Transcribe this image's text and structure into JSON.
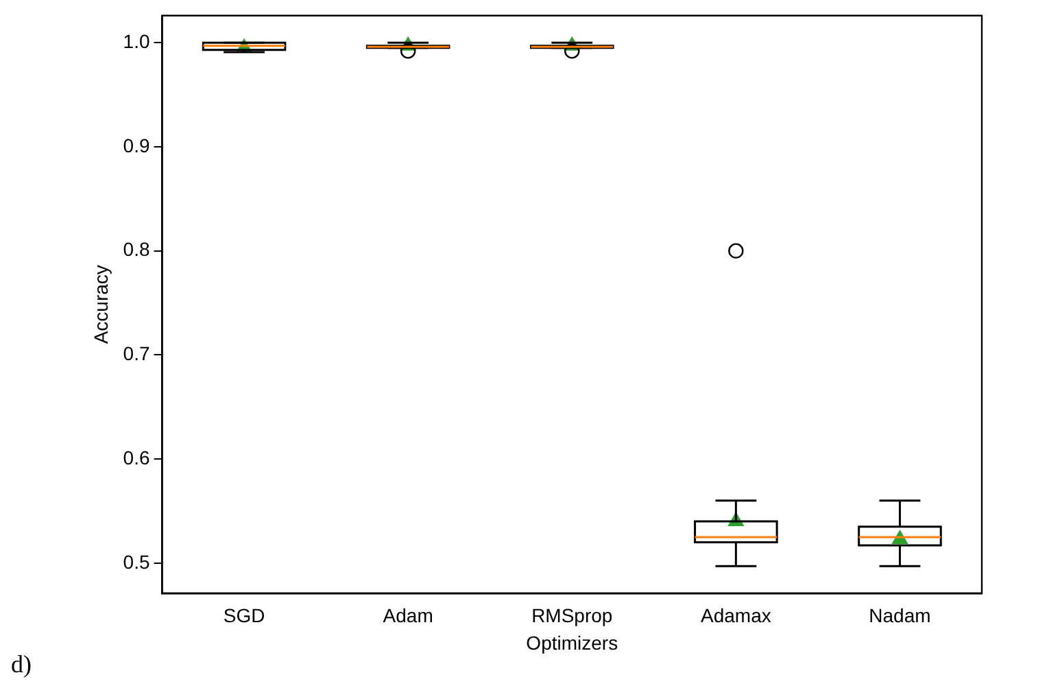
{
  "chart_data": {
    "type": "box",
    "xlabel": "Optimizers",
    "ylabel": "Accuracy",
    "categories": [
      "SGD",
      "Adam",
      "RMSprop",
      "Adamax",
      "Nadam"
    ],
    "boxes": [
      {
        "low": 0.991,
        "q1": 0.993,
        "median": 0.997,
        "q3": 1.0,
        "high": 1.0,
        "mean": 0.995
      },
      {
        "low": 0.995,
        "q1": 0.995,
        "median": 0.996,
        "q3": 0.997,
        "high": 1.0,
        "mean": 0.997,
        "outliers": [
          0.992
        ]
      },
      {
        "low": 0.995,
        "q1": 0.995,
        "median": 0.996,
        "q3": 0.997,
        "high": 1.0,
        "mean": 0.997,
        "outliers": [
          0.992
        ]
      },
      {
        "low": 0.497,
        "q1": 0.52,
        "median": 0.525,
        "q3": 0.54,
        "high": 0.56,
        "mean": 0.54,
        "outliers": [
          0.8
        ]
      },
      {
        "low": 0.497,
        "q1": 0.517,
        "median": 0.525,
        "q3": 0.535,
        "high": 0.56,
        "mean": 0.523
      }
    ],
    "ylim": [
      0.471,
      1.026
    ],
    "yticks": [
      0.5,
      0.6,
      0.7,
      0.8,
      0.9,
      {
        "value": 1,
        "label": "1.0"
      }
    ],
    "grid": false,
    "legend": false,
    "marker": "triangle",
    "annotations": [
      "d)"
    ]
  }
}
